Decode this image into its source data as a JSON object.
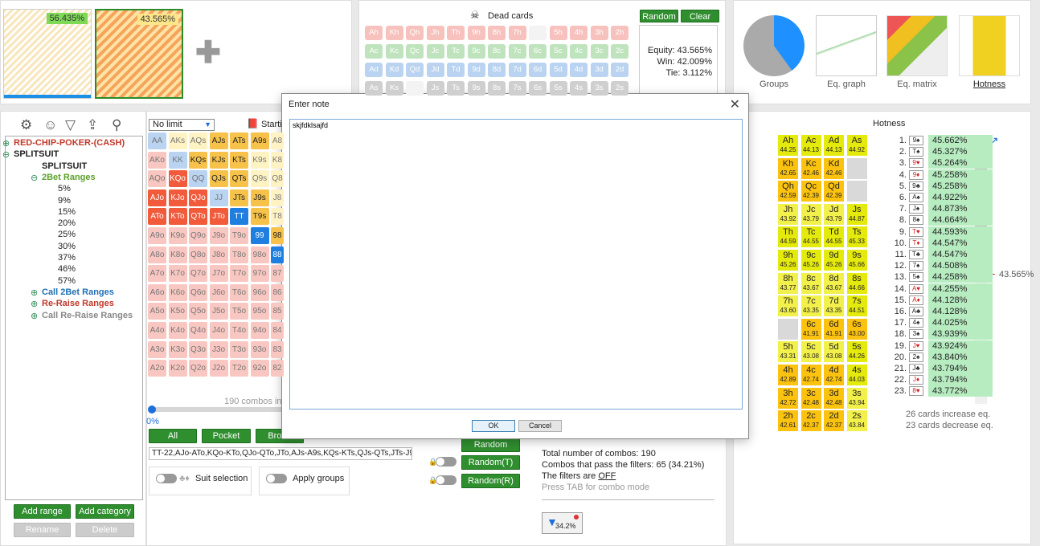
{
  "top_left": {
    "pct_a": "56.435%",
    "pct_b": "43.565%"
  },
  "dead_cards": {
    "title": "Dead cards",
    "random_label": "Random",
    "clear_label": "Clear",
    "rows": [
      [
        "Ah",
        "Kh",
        "Qh",
        "Jh",
        "Th",
        "9h",
        "8h",
        "7h",
        "",
        "5h",
        "4h",
        "3h",
        "2h"
      ],
      [
        "Ac",
        "Kc",
        "Qc",
        "Jc",
        "Tc",
        "9c",
        "8c",
        "7c",
        "6c",
        "5c",
        "4c",
        "3c",
        "2c"
      ],
      [
        "Ad",
        "Kd",
        "Qd",
        "Jd",
        "Td",
        "9d",
        "8d",
        "7d",
        "6d",
        "5d",
        "4d",
        "3d",
        "2d"
      ],
      [
        "As",
        "Ks",
        "",
        "Js",
        "Ts",
        "9s",
        "8s",
        "7s",
        "6s",
        "5s",
        "4s",
        "3s",
        "2s"
      ]
    ],
    "equity": "Equity: 43.565%",
    "win": "Win: 42.009%",
    "tie": "Tie: 3.112%"
  },
  "tabs": [
    {
      "label": "Groups",
      "icon": "pie-chart-icon"
    },
    {
      "label": "Eq. graph",
      "icon": "line-graph-icon"
    },
    {
      "label": "Eq. matrix",
      "icon": "matrix-icon"
    },
    {
      "label": "Hotness",
      "icon": "hotness-icon"
    }
  ],
  "tree": {
    "items": [
      {
        "label": "RED-CHIP-POKER-(CASH)",
        "color": "#c0392b",
        "toggle": "+"
      },
      {
        "label": "SPLITSUIT",
        "color": "#222",
        "toggle": "-"
      },
      {
        "label": "SPLITSUIT",
        "color": "#222"
      },
      {
        "label": "2Bet Ranges",
        "color": "#5aa02c",
        "toggle": "-"
      },
      {
        "label": "5%"
      },
      {
        "label": "9%"
      },
      {
        "label": "15%"
      },
      {
        "label": "20%"
      },
      {
        "label": "25%"
      },
      {
        "label": "30%"
      },
      {
        "label": "37%"
      },
      {
        "label": "46%"
      },
      {
        "label": "57%"
      },
      {
        "label": "Call 2Bet Ranges",
        "color": "#1f6fb2",
        "toggle": "+"
      },
      {
        "label": "Re-Raise Ranges",
        "color": "#c0392b",
        "toggle": "+"
      },
      {
        "label": "Call Re-Raise Ranges",
        "color": "#888",
        "toggle": "+"
      }
    ],
    "add_range": "Add range",
    "add_category": "Add category",
    "rename": "Rename",
    "delete": "Delete"
  },
  "range": {
    "limit": "No limit",
    "starting_label": "Starti",
    "grid": [
      [
        "AA",
        "AKs",
        "AQs",
        "AJs",
        "ATs",
        "A9s",
        "A8"
      ],
      [
        "AKo",
        "KK",
        "KQs",
        "KJs",
        "KTs",
        "K9s",
        "K8"
      ],
      [
        "AQo",
        "KQo",
        "QQ",
        "QJs",
        "QTs",
        "Q9s",
        "Q8"
      ],
      [
        "AJo",
        "KJo",
        "QJo",
        "JJ",
        "JTs",
        "J9s",
        "J8"
      ],
      [
        "ATo",
        "KTo",
        "QTo",
        "JTo",
        "TT",
        "T9s",
        "T8"
      ],
      [
        "A9o",
        "K9o",
        "Q9o",
        "J9o",
        "T9o",
        "99",
        "98"
      ],
      [
        "A8o",
        "K8o",
        "Q8o",
        "J8o",
        "T8o",
        "98o",
        "88"
      ],
      [
        "A7o",
        "K7o",
        "Q7o",
        "J7o",
        "T7o",
        "97o",
        "87"
      ],
      [
        "A6o",
        "K6o",
        "Q6o",
        "J6o",
        "T6o",
        "96o",
        "86"
      ],
      [
        "A5o",
        "K5o",
        "Q5o",
        "J5o",
        "T5o",
        "95o",
        "85"
      ],
      [
        "A4o",
        "K4o",
        "Q4o",
        "J4o",
        "T4o",
        "94o",
        "84"
      ],
      [
        "A3o",
        "K3o",
        "Q3o",
        "J3o",
        "T3o",
        "93o",
        "83"
      ],
      [
        "A2o",
        "K2o",
        "Q2o",
        "J2o",
        "T2o",
        "92o",
        "82"
      ]
    ],
    "combos": "190 combos in",
    "slider_pct": "0%",
    "buttons": [
      "All",
      "Pocket",
      "Broad"
    ],
    "range_text": "TT-22,AJo-ATo,KQo-KTo,QJo-QTo,JTo,AJs-A9s,KQs-KTs,QJs-QTs,JTs-J9s,",
    "suit_selection": "Suit selection",
    "apply_groups": "Apply groups"
  },
  "random": {
    "r1": "Random",
    "r2": "Random(T)",
    "r3": "Random(R)"
  },
  "stats": {
    "total": "Total number of combos: 190",
    "pass": "Combos that pass the filters: 65 (34.21%)",
    "filters_prefix": "The filters are ",
    "filters_state": "OFF",
    "hint": "Press TAB for combo mode",
    "filter_pct": "34.2%"
  },
  "hotness": {
    "title": "Hotness",
    "grid": [
      [
        [
          "Ah",
          "44.25",
          "hy"
        ],
        [
          "Ac",
          "44.13",
          "hy"
        ],
        [
          "Ad",
          "44.13",
          "hy"
        ],
        [
          "As",
          "44.92",
          "hy"
        ]
      ],
      [
        [
          "Kh",
          "42.65",
          "ho"
        ],
        [
          "Kc",
          "42.46",
          "ho"
        ],
        [
          "Kd",
          "42.46",
          "ho"
        ],
        [
          "",
          "",
          "hg"
        ]
      ],
      [
        [
          "Qh",
          "42.59",
          "ho"
        ],
        [
          "Qc",
          "42.39",
          "ho"
        ],
        [
          "Qd",
          "42.39",
          "ho"
        ],
        [
          "",
          "",
          "hg"
        ]
      ],
      [
        [
          "Jh",
          "43.92",
          "hyl"
        ],
        [
          "Jc",
          "43.79",
          "hyl"
        ],
        [
          "Jd",
          "43.79",
          "hyl"
        ],
        [
          "Js",
          "44.87",
          "hy"
        ]
      ],
      [
        [
          "Th",
          "44.59",
          "hy"
        ],
        [
          "Tc",
          "44.55",
          "hy"
        ],
        [
          "Td",
          "44.55",
          "hy"
        ],
        [
          "Ts",
          "45.33",
          "hy"
        ]
      ],
      [
        [
          "9h",
          "45.26",
          "hy"
        ],
        [
          "9c",
          "45.26",
          "hy"
        ],
        [
          "9d",
          "45.26",
          "hy"
        ],
        [
          "9s",
          "45.66",
          "hy"
        ]
      ],
      [
        [
          "8h",
          "43.77",
          "hyl"
        ],
        [
          "8c",
          "43.67",
          "hyl"
        ],
        [
          "8d",
          "43.67",
          "hyl"
        ],
        [
          "8s",
          "44.66",
          "hy"
        ]
      ],
      [
        [
          "7h",
          "43.60",
          "hyl"
        ],
        [
          "7c",
          "43.35",
          "hyl"
        ],
        [
          "7d",
          "43.35",
          "hyl"
        ],
        [
          "7s",
          "44.51",
          "hy"
        ]
      ],
      [
        [
          "",
          "",
          "hg"
        ],
        [
          "6c",
          "41.91",
          "ho"
        ],
        [
          "6d",
          "41.91",
          "ho"
        ],
        [
          "6s",
          "43.00",
          "ho"
        ]
      ],
      [
        [
          "5h",
          "43.31",
          "hyl"
        ],
        [
          "5c",
          "43.08",
          "hyl"
        ],
        [
          "5d",
          "43.08",
          "hyl"
        ],
        [
          "5s",
          "44.26",
          "hy"
        ]
      ],
      [
        [
          "4h",
          "42.89",
          "ho"
        ],
        [
          "4c",
          "42.74",
          "ho"
        ],
        [
          "4d",
          "42.74",
          "ho"
        ],
        [
          "4s",
          "44.03",
          "hy"
        ]
      ],
      [
        [
          "3h",
          "42.72",
          "ho"
        ],
        [
          "3c",
          "42.48",
          "ho"
        ],
        [
          "3d",
          "42.48",
          "ho"
        ],
        [
          "3s",
          "43.94",
          "hyl"
        ]
      ],
      [
        [
          "2h",
          "42.61",
          "ho"
        ],
        [
          "2c",
          "42.37",
          "ho"
        ],
        [
          "2d",
          "42.37",
          "ho"
        ],
        [
          "2s",
          "43.84",
          "hyl"
        ]
      ]
    ],
    "list": [
      [
        "1.",
        "9♠",
        "45.662%"
      ],
      [
        "2.",
        "T♠",
        "45.327%"
      ],
      [
        "3.",
        "9♥",
        "45.264%"
      ],
      [
        "4.",
        "9♦",
        "45.258%"
      ],
      [
        "5.",
        "9♣",
        "45.258%"
      ],
      [
        "6.",
        "A♠",
        "44.922%"
      ],
      [
        "7.",
        "J♠",
        "44.873%"
      ],
      [
        "8.",
        "8♠",
        "44.664%"
      ],
      [
        "9.",
        "T♥",
        "44.593%"
      ],
      [
        "10.",
        "T♦",
        "44.547%"
      ],
      [
        "11.",
        "T♣",
        "44.547%"
      ],
      [
        "12.",
        "7♠",
        "44.508%"
      ],
      [
        "13.",
        "5♠",
        "44.258%"
      ],
      [
        "14.",
        "A♥",
        "44.255%"
      ],
      [
        "15.",
        "A♦",
        "44.128%"
      ],
      [
        "16.",
        "A♣",
        "44.128%"
      ],
      [
        "17.",
        "4♠",
        "44.025%"
      ],
      [
        "18.",
        "3♠",
        "43.939%"
      ],
      [
        "19.",
        "J♥",
        "43.924%"
      ],
      [
        "20.",
        "2♠",
        "43.840%"
      ],
      [
        "21.",
        "J♣",
        "43.794%"
      ],
      [
        "22.",
        "J♦",
        "43.794%"
      ],
      [
        "23.",
        "8♥",
        "43.772%"
      ]
    ],
    "marker": "43.565%",
    "increase": "26 cards increase eq.",
    "decrease": "23 cards decrease eq."
  },
  "dialog": {
    "title": "Enter note",
    "text": "skjfdklsajfd",
    "ok": "OK",
    "cancel": "Cancel"
  }
}
